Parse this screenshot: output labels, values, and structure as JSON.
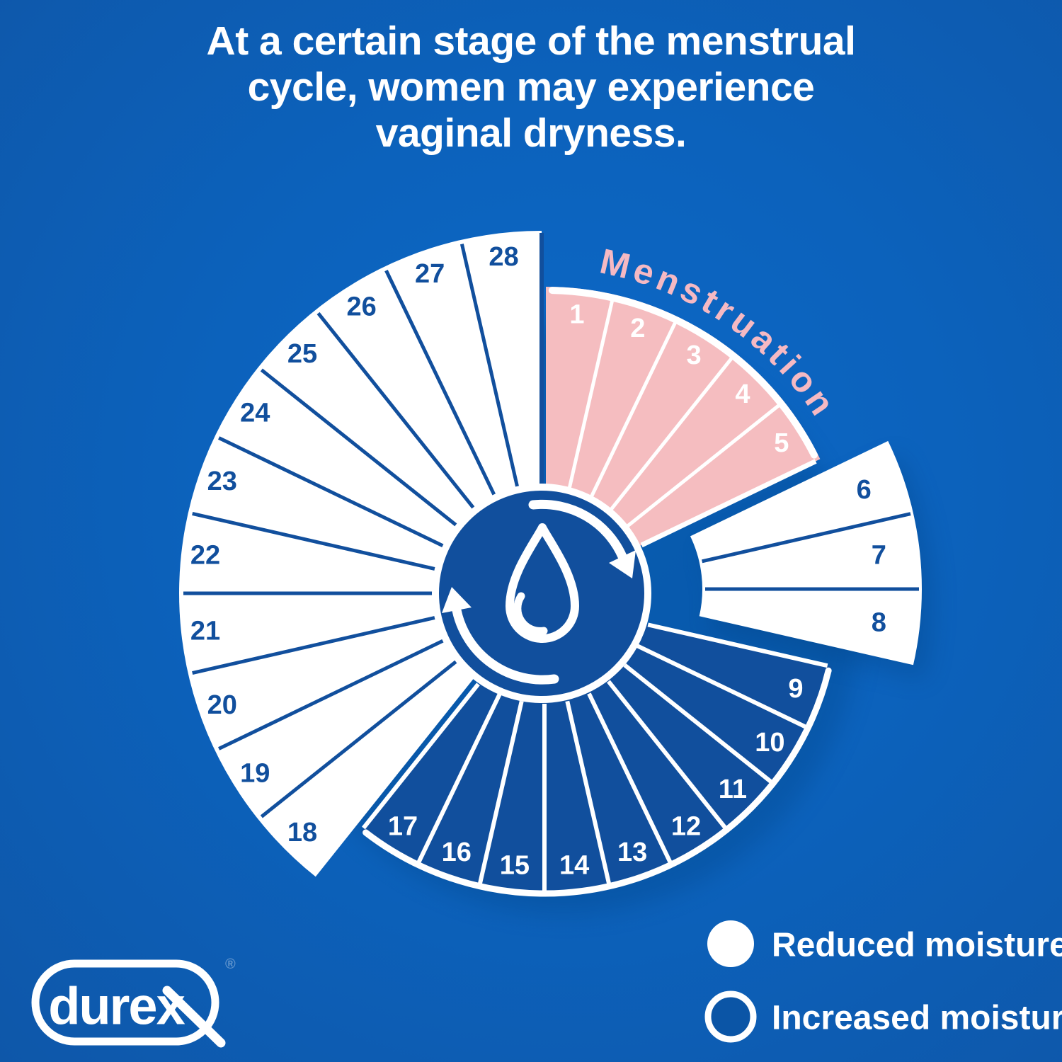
{
  "title": {
    "lines": [
      "At a certain stage of the menstrual",
      "cycle, women may experience",
      "vaginal dryness."
    ]
  },
  "wheel": {
    "phase_label": "Menstruation",
    "total_days": "28",
    "groups": [
      {
        "id": "menstruation-days",
        "phase": "Menstruation",
        "moisture": "menstruation",
        "days": [
          "1",
          "2",
          "3",
          "4",
          "5"
        ]
      },
      {
        "id": "post-menstruation-days",
        "moisture": "reduced",
        "days": [
          "6",
          "7",
          "8"
        ]
      },
      {
        "id": "mid-cycle-days",
        "moisture": "increased",
        "days": [
          "9",
          "10",
          "11",
          "12",
          "13",
          "14",
          "15",
          "16",
          "17"
        ]
      },
      {
        "id": "luteal-days",
        "moisture": "reduced",
        "days": [
          "18",
          "19",
          "20",
          "21",
          "22",
          "23",
          "24",
          "25",
          "26",
          "27",
          "28"
        ]
      }
    ]
  },
  "legend": {
    "items": [
      {
        "swatch": "white-filled-circle",
        "label": "Reduced moisture"
      },
      {
        "swatch": "white-outlined-circle",
        "label": "Increased moisture"
      }
    ]
  },
  "logo": {
    "text": "durex",
    "registered_mark": "®"
  },
  "colors": {
    "background": "#0C62BC",
    "dark_blue": "#114F9D",
    "pink": "#F5BDC0",
    "phase_label_pink": "#F5B9C3",
    "white": "#FFFFFF",
    "shadow": "#05407F"
  }
}
